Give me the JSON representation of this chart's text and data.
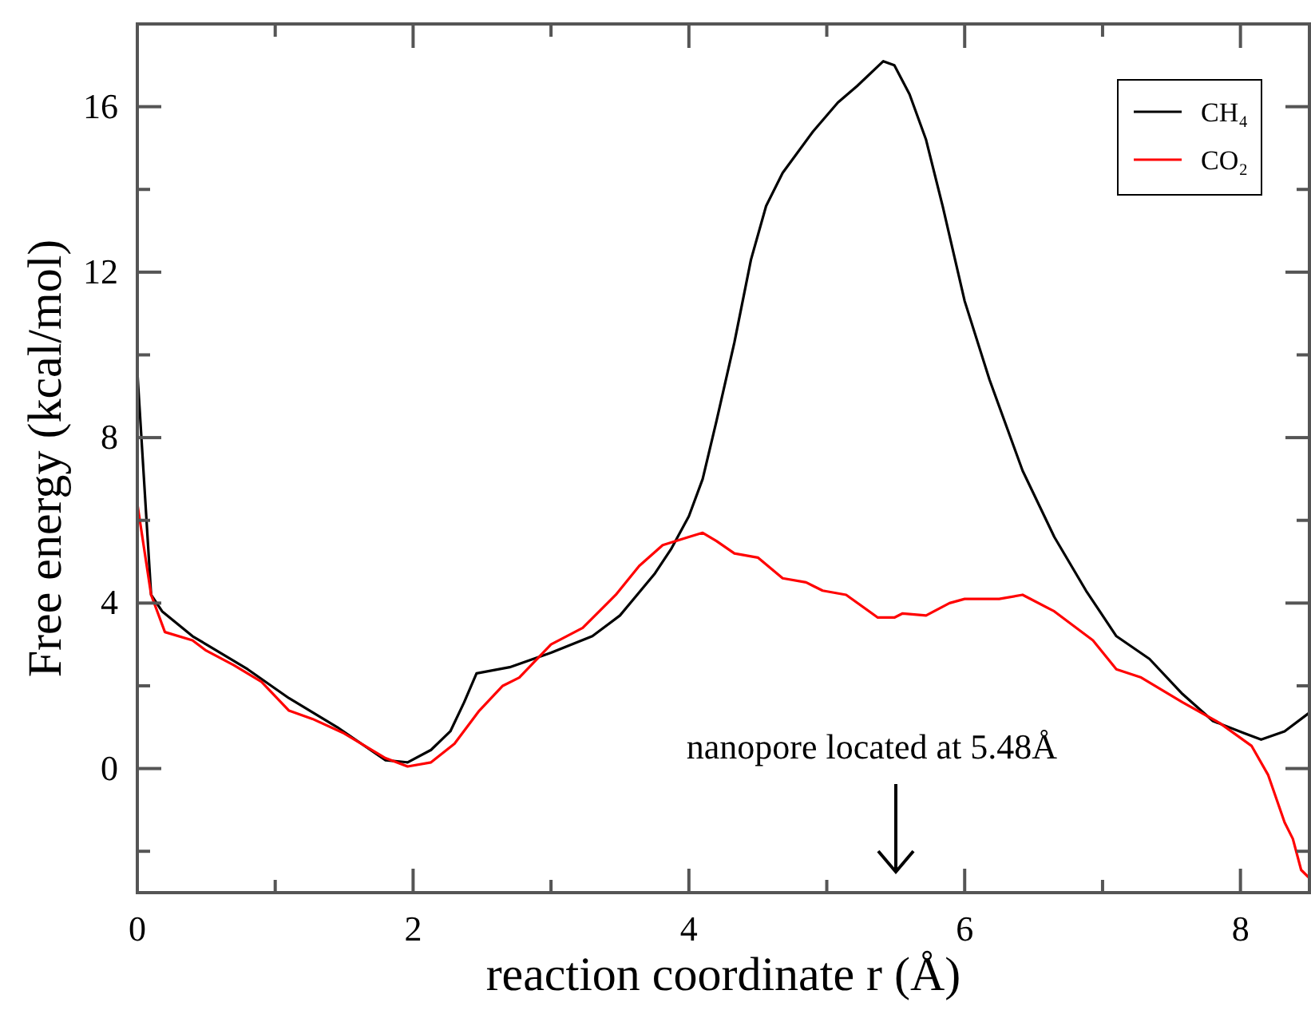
{
  "chart_data": {
    "type": "line",
    "xlabel": "reaction coordinate r (Å)",
    "ylabel": "Free energy (kcal/mol)",
    "xlim": [
      0,
      8.5
    ],
    "ylim": [
      -3,
      18
    ],
    "xticks": [
      0,
      {
        "value": 1,
        "label": null
      },
      2,
      {
        "value": 3,
        "label": null
      },
      4,
      {
        "value": 5,
        "label": null
      },
      6,
      {
        "value": 7,
        "label": null
      },
      8
    ],
    "yticks": [
      {
        "value": -2,
        "label": null
      },
      0,
      {
        "value": 2,
        "label": null
      },
      4,
      {
        "value": 6,
        "label": null
      },
      8,
      {
        "value": 10,
        "label": null
      },
      12,
      {
        "value": 14,
        "label": null
      },
      16
    ],
    "legend": "top right",
    "grid": false,
    "marker": "none",
    "line_style": "solid",
    "annotations": [
      "nanopore located at 5.48Å"
    ],
    "series": [
      {
        "name": "CH₄",
        "color": "#000000",
        "x": [
          0,
          0.1,
          0.18,
          0.4,
          0.5,
          0.8,
          1.1,
          1.45,
          1.8,
          1.96,
          2.13,
          2.27,
          2.37,
          2.46,
          2.7,
          3.0,
          3.3,
          3.5,
          3.75,
          3.87,
          4.0,
          4.1,
          4.2,
          4.33,
          4.45,
          4.56,
          4.68,
          4.9,
          5.08,
          5.22,
          5.41,
          5.49,
          5.6,
          5.72,
          5.84,
          6.0,
          6.18,
          6.42,
          6.65,
          6.88,
          7.1,
          7.34,
          7.58,
          7.8,
          8.03,
          8.15,
          8.32,
          8.5
        ],
        "values": [
          9.6,
          4.2,
          3.8,
          3.2,
          3.0,
          2.4,
          1.7,
          1.0,
          0.2,
          0.15,
          0.45,
          0.9,
          1.6,
          2.3,
          2.45,
          2.8,
          3.2,
          3.7,
          4.7,
          5.3,
          6.1,
          7.0,
          8.4,
          10.3,
          12.3,
          13.6,
          14.4,
          15.4,
          16.1,
          16.5,
          17.1,
          17.0,
          16.3,
          15.2,
          13.6,
          11.3,
          9.4,
          7.2,
          5.6,
          4.3,
          3.2,
          2.65,
          1.8,
          1.15,
          0.85,
          0.7,
          0.9,
          1.35
        ]
      },
      {
        "name": "CO₂",
        "color": "#ff0000",
        "x": [
          0,
          0.1,
          0.2,
          0.4,
          0.5,
          0.7,
          0.9,
          1.1,
          1.27,
          1.5,
          1.8,
          1.96,
          2.13,
          2.3,
          2.48,
          2.65,
          2.77,
          3.0,
          3.23,
          3.47,
          3.64,
          3.81,
          4.0,
          4.1,
          4.2,
          4.33,
          4.5,
          4.68,
          4.85,
          4.97,
          5.14,
          5.37,
          5.49,
          5.55,
          5.72,
          5.89,
          6.0,
          6.25,
          6.42,
          6.65,
          6.93,
          7.1,
          7.28,
          7.58,
          7.85,
          8.08,
          8.2,
          8.32,
          8.38,
          8.44,
          8.5
        ],
        "values": [
          6.4,
          4.2,
          3.3,
          3.1,
          2.85,
          2.5,
          2.1,
          1.4,
          1.2,
          0.85,
          0.25,
          0.05,
          0.15,
          0.6,
          1.4,
          2.0,
          2.2,
          3.0,
          3.4,
          4.2,
          4.9,
          5.4,
          5.6,
          5.7,
          5.5,
          5.2,
          5.1,
          4.6,
          4.5,
          4.3,
          4.2,
          3.65,
          3.65,
          3.75,
          3.7,
          4.0,
          4.1,
          4.1,
          4.2,
          3.8,
          3.1,
          2.4,
          2.2,
          1.6,
          1.1,
          0.55,
          -0.15,
          -1.3,
          -1.7,
          -2.45,
          -2.65
        ]
      }
    ]
  }
}
